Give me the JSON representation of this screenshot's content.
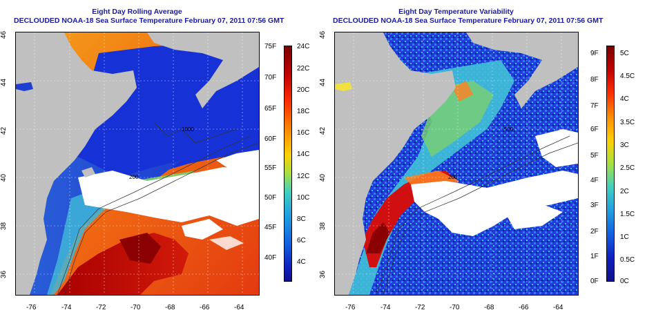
{
  "panels": [
    {
      "id": "left",
      "title_line1": "Eight Day Rolling Average",
      "title_line2": "DECLOUDED NOAA-18 Sea Surface Temperature February 07, 2011 07:56 GMT",
      "colorbar_left_labels": [
        "75F",
        "70F",
        "65F",
        "60F",
        "55F",
        "50F",
        "45F",
        "40F"
      ],
      "colorbar_right_labels": [
        "24C",
        "22C",
        "20C",
        "18C",
        "16C",
        "14C",
        "12C",
        "10C",
        "8C",
        "6C",
        "4C"
      ]
    },
    {
      "id": "right",
      "title_line1": "Eight Day Temperature Variability",
      "title_line2": "DECLOUDED NOAA-18 Sea Surface Temperature February 07, 2011 07:56 GMT",
      "colorbar_left_labels": [
        "9F",
        "8F",
        "7F",
        "6F",
        "5F",
        "4F",
        "3F",
        "2F",
        "1F",
        "0F"
      ],
      "colorbar_right_labels": [
        "5C",
        "4.5C",
        "4C",
        "3.5C",
        "3C",
        "2.5C",
        "2C",
        "1.5C",
        "1C",
        "0.5C",
        "0C"
      ]
    }
  ],
  "lat_labels": [
    "46",
    "44",
    "42",
    "40",
    "38",
    "36"
  ],
  "lon_labels": [
    "-76",
    "-74",
    "-72",
    "-70",
    "-68",
    "-66",
    "-64"
  ],
  "contour_labels": [
    "200",
    "200",
    "200",
    "1000",
    "500"
  ],
  "colors": {
    "title": "#1a1aa0",
    "land": "#c0c0c0",
    "cloud": "#ffffff"
  }
}
